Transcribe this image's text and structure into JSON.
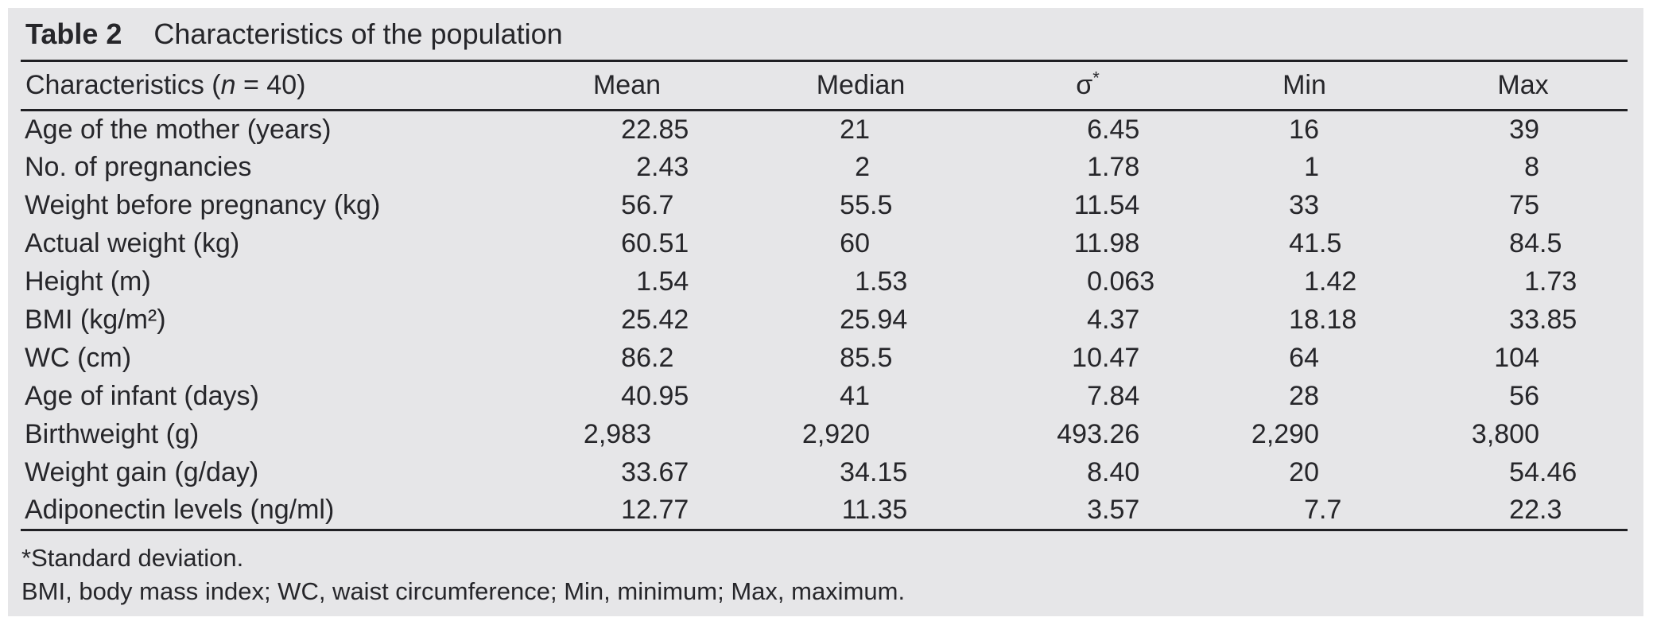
{
  "title": {
    "label": "Table 2",
    "text": "Characteristics of the population"
  },
  "table": {
    "header": {
      "characteristics_pre": "Characteristics (",
      "characteristics_n": "n",
      "characteristics_post": " = 40)",
      "mean": "Mean",
      "median": "Median",
      "sigma": "σ",
      "sigma_marker": "*",
      "min": "Min",
      "max": "Max"
    },
    "rows": [
      {
        "label": "Age of the mother (years)",
        "mean": "22.85",
        "median": "21",
        "sd": "6.45",
        "min": "16",
        "max": "39"
      },
      {
        "label": "No. of pregnancies",
        "mean": "2.43",
        "median": "2",
        "sd": "1.78",
        "min": "1",
        "max": "8"
      },
      {
        "label": "Weight before pregnancy (kg)",
        "mean": "56.7",
        "median": "55.5",
        "sd": "11.54",
        "min": "33",
        "max": "75"
      },
      {
        "label": "Actual weight (kg)",
        "mean": "60.51",
        "median": "60",
        "sd": "11.98",
        "min": "41.5",
        "max": "84.5"
      },
      {
        "label": "Height (m)",
        "mean": "1.54",
        "median": "1.53",
        "sd": "0.063",
        "min": "1.42",
        "max": "1.73"
      },
      {
        "label": "BMI (kg/m²)",
        "mean": "25.42",
        "median": "25.94",
        "sd": "4.37",
        "min": "18.18",
        "max": "33.85"
      },
      {
        "label": "WC (cm)",
        "mean": "86.2",
        "median": "85.5",
        "sd": "10.47",
        "min": "64",
        "max": "104"
      },
      {
        "label": "Age of infant (days)",
        "mean": "40.95",
        "median": "41",
        "sd": "7.84",
        "min": "28",
        "max": "56"
      },
      {
        "label": "Birthweight (g)",
        "mean": "2,983",
        "median": "2,920",
        "sd": "493.26",
        "min": "2,290",
        "max": "3,800"
      },
      {
        "label": "Weight gain (g/day)",
        "mean": "33.67",
        "median": "34.15",
        "sd": "8.40",
        "min": "20",
        "max": "54.46"
      },
      {
        "label": "Adiponectin levels (ng/ml)",
        "mean": "12.77",
        "median": "11.35",
        "sd": "3.57",
        "min": "7.7",
        "max": "22.3"
      }
    ]
  },
  "footnotes": [
    "*Standard deviation.",
    "BMI, body mass index; WC, waist circumference; Min, minimum; Max, maximum."
  ],
  "colors": {
    "panel_background": "#e6e6e8",
    "text": "#26262a",
    "rule": "#202024"
  }
}
